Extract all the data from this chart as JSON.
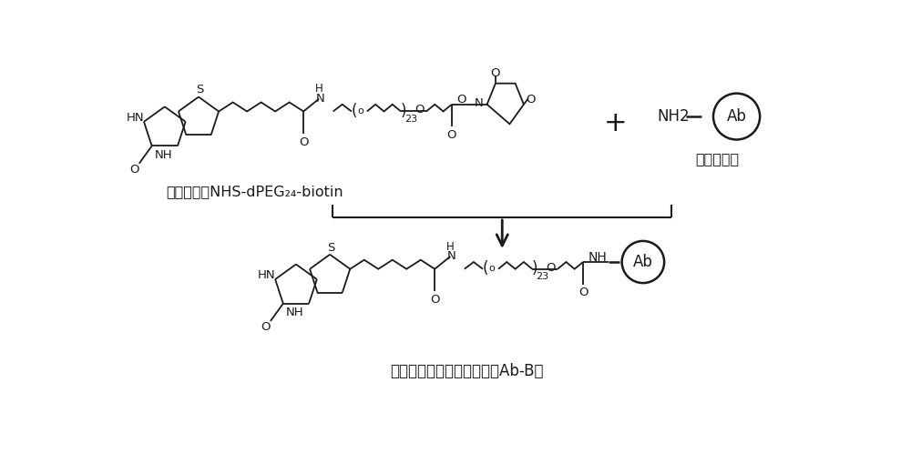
{
  "bg_color": "#ffffff",
  "line_color": "#1a1a1a",
  "figsize": [
    10.0,
    5.09
  ],
  "dpi": 100,
  "label_top": "长锂生物素NHS-dPEG₂₄-biotin",
  "label_right": "单克隆抗体",
  "label_bottom": "长锂生物素化单克隆抗体（Ab-B）",
  "xlim": [
    0,
    10
  ],
  "ylim": [
    0,
    5.09
  ]
}
